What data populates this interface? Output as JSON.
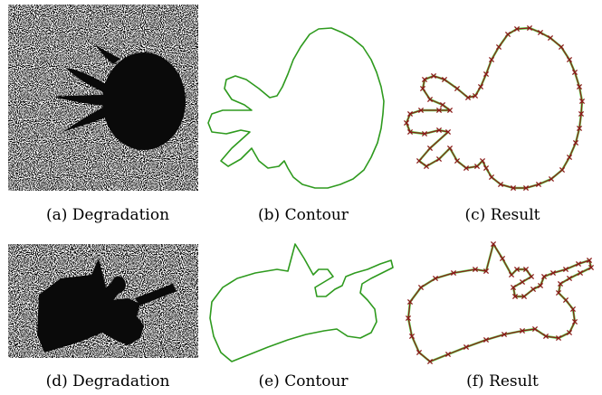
{
  "figure": {
    "captions": [
      "(a) Degradation",
      "(b) Contour",
      "(c) Result",
      "(d) Degradation",
      "(e) Contour",
      "(f) Result"
    ]
  },
  "colors": {
    "noise_dark": "#1a1a1a",
    "noise_light": "#ffffff",
    "shape_fill": "#0a0a0a",
    "contour": "#2e9a1e",
    "result_line": "#8b1a1a",
    "result_marker": "#8b1a1a",
    "result_underlay": "#5bd44a"
  },
  "icons": {
    "marker": "x-marker"
  }
}
